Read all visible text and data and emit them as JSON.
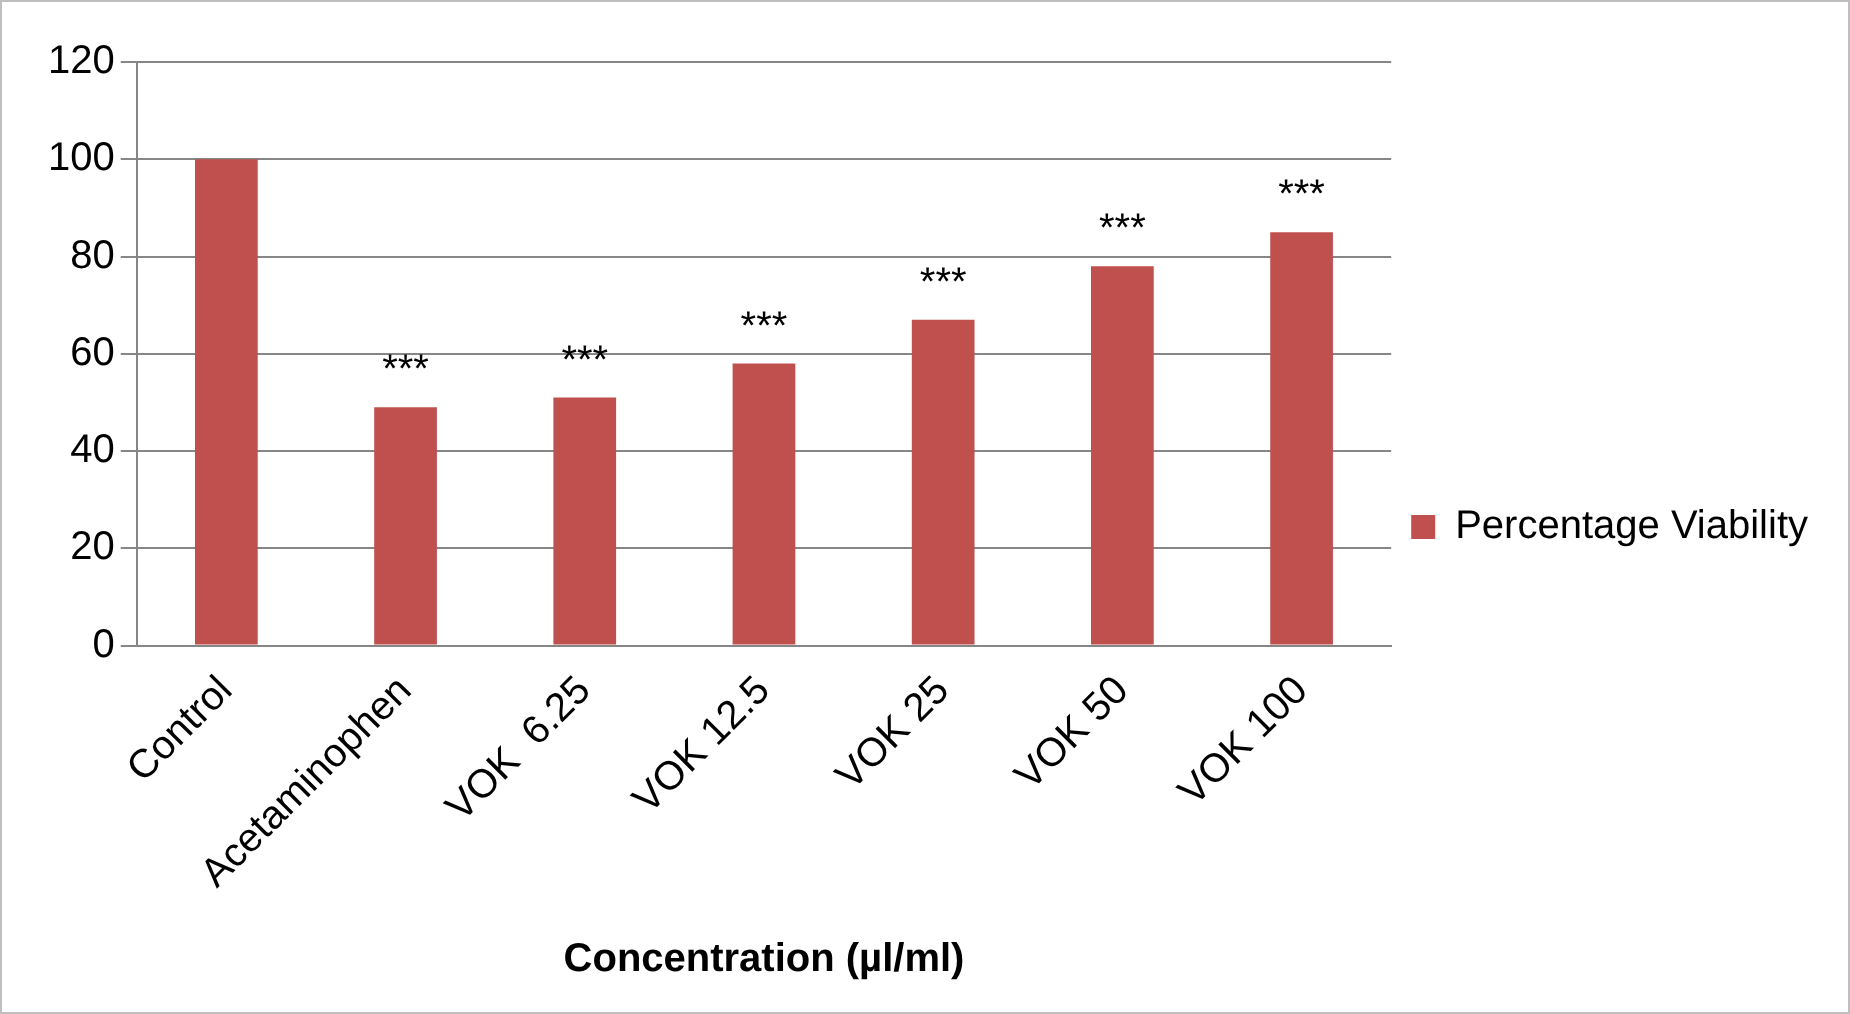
{
  "chart_data": {
    "type": "bar",
    "xlabel": "Concentration (µl/ml)",
    "categories": [
      "Control",
      "Acetaminophen",
      "VOK  6.25",
      "VOK 12.5",
      "VOK 25",
      "VOK 50",
      "VOK 100"
    ],
    "series": [
      {
        "name": "Percentage Viability",
        "color": "#c0504d",
        "values": [
          100,
          49,
          51,
          58,
          67,
          78,
          85
        ]
      }
    ],
    "ylim": [
      0,
      120
    ],
    "yticks": [
      0,
      20,
      40,
      60,
      80,
      100,
      120
    ],
    "grid": "y",
    "legend": "right",
    "annotations": [
      {
        "text": "***",
        "x": "Acetaminophen",
        "y": 49
      },
      {
        "text": "***",
        "x": "VOK  6.25",
        "y": 51
      },
      {
        "text": "***",
        "x": "VOK 12.5",
        "y": 58
      },
      {
        "text": "***",
        "x": "VOK 25",
        "y": 67
      },
      {
        "text": "***",
        "x": "VOK 50",
        "y": 78
      },
      {
        "text": "***",
        "x": "VOK 100",
        "y": 85
      }
    ]
  }
}
